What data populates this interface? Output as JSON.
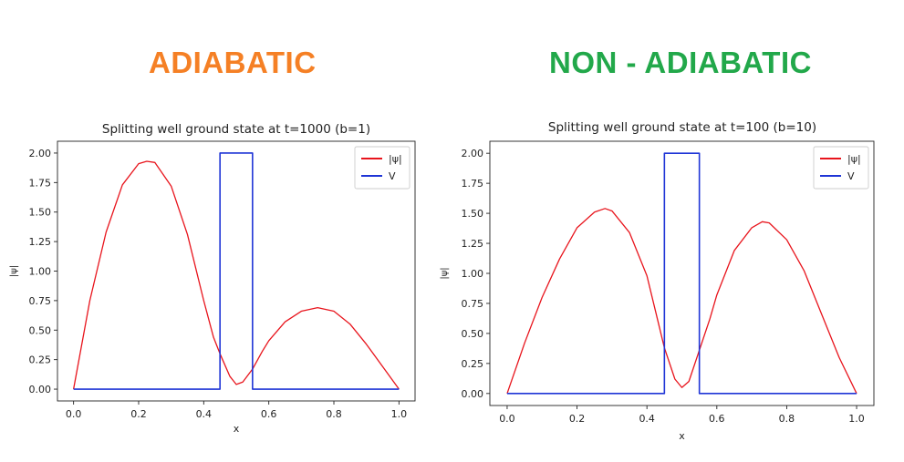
{
  "headings": {
    "left": {
      "text": "ADIABATIC",
      "color": "#f58025"
    },
    "right": {
      "text": "NON - ADIABATIC",
      "color": "#22a84a"
    }
  },
  "chart_data": [
    {
      "type": "line",
      "title": "Splitting well ground state at t=1000 (b=1)",
      "xlabel": "x",
      "ylabel": "|ψ|",
      "xlim": [
        0,
        1
      ],
      "ylim": [
        -0.1,
        2.1
      ],
      "xticks": [
        0.0,
        0.2,
        0.4,
        0.6,
        0.8,
        1.0
      ],
      "xtick_labels": [
        "0.0",
        "0.2",
        "0.4",
        "0.6",
        "0.8",
        "1.0"
      ],
      "yticks": [
        0.0,
        0.25,
        0.5,
        0.75,
        1.0,
        1.25,
        1.5,
        1.75,
        2.0
      ],
      "ytick_labels": [
        "0.00",
        "0.25",
        "0.50",
        "0.75",
        "1.00",
        "1.25",
        "1.50",
        "1.75",
        "2.00"
      ],
      "legend_position": "top-right",
      "series": [
        {
          "name": "|ψ|",
          "color": "#e8141c",
          "x": [
            0.0,
            0.05,
            0.1,
            0.15,
            0.2,
            0.225,
            0.25,
            0.3,
            0.35,
            0.4,
            0.43,
            0.45,
            0.48,
            0.5,
            0.52,
            0.55,
            0.58,
            0.6,
            0.65,
            0.7,
            0.75,
            0.8,
            0.85,
            0.9,
            0.95,
            1.0
          ],
          "y": [
            0.0,
            0.75,
            1.33,
            1.73,
            1.91,
            1.93,
            1.92,
            1.72,
            1.31,
            0.75,
            0.44,
            0.3,
            0.11,
            0.04,
            0.06,
            0.17,
            0.32,
            0.41,
            0.57,
            0.66,
            0.69,
            0.66,
            0.55,
            0.38,
            0.19,
            0.0
          ]
        },
        {
          "name": "V",
          "color": "#1f35d6",
          "x": [
            0.0,
            0.45,
            0.45,
            0.55,
            0.55,
            1.0
          ],
          "y": [
            0.0,
            0.0,
            2.0,
            2.0,
            0.0,
            0.0
          ]
        }
      ]
    },
    {
      "type": "line",
      "title": "Splitting well ground state at t=100 (b=10)",
      "xlabel": "x",
      "ylabel": "|ψ|",
      "xlim": [
        0,
        1
      ],
      "ylim": [
        -0.1,
        2.1
      ],
      "xticks": [
        0.0,
        0.2,
        0.4,
        0.6,
        0.8,
        1.0
      ],
      "xtick_labels": [
        "0.0",
        "0.2",
        "0.4",
        "0.6",
        "0.8",
        "1.0"
      ],
      "yticks": [
        0.0,
        0.25,
        0.5,
        0.75,
        1.0,
        1.25,
        1.5,
        1.75,
        2.0
      ],
      "ytick_labels": [
        "0.00",
        "0.25",
        "0.50",
        "0.75",
        "1.00",
        "1.25",
        "1.50",
        "1.75",
        "2.00"
      ],
      "legend_position": "top-right",
      "series": [
        {
          "name": "|ψ|",
          "color": "#e8141c",
          "x": [
            0.0,
            0.05,
            0.1,
            0.15,
            0.2,
            0.25,
            0.28,
            0.3,
            0.35,
            0.4,
            0.43,
            0.45,
            0.48,
            0.5,
            0.52,
            0.55,
            0.58,
            0.6,
            0.65,
            0.7,
            0.73,
            0.75,
            0.8,
            0.85,
            0.9,
            0.95,
            1.0
          ],
          "y": [
            0.0,
            0.42,
            0.8,
            1.12,
            1.38,
            1.51,
            1.54,
            1.52,
            1.34,
            0.98,
            0.62,
            0.38,
            0.12,
            0.05,
            0.1,
            0.36,
            0.62,
            0.82,
            1.19,
            1.38,
            1.43,
            1.42,
            1.28,
            1.02,
            0.66,
            0.3,
            0.0
          ]
        },
        {
          "name": "V",
          "color": "#1f35d6",
          "x": [
            0.0,
            0.45,
            0.45,
            0.55,
            0.55,
            1.0
          ],
          "y": [
            0.0,
            0.0,
            2.0,
            2.0,
            0.0,
            0.0
          ]
        }
      ]
    }
  ]
}
